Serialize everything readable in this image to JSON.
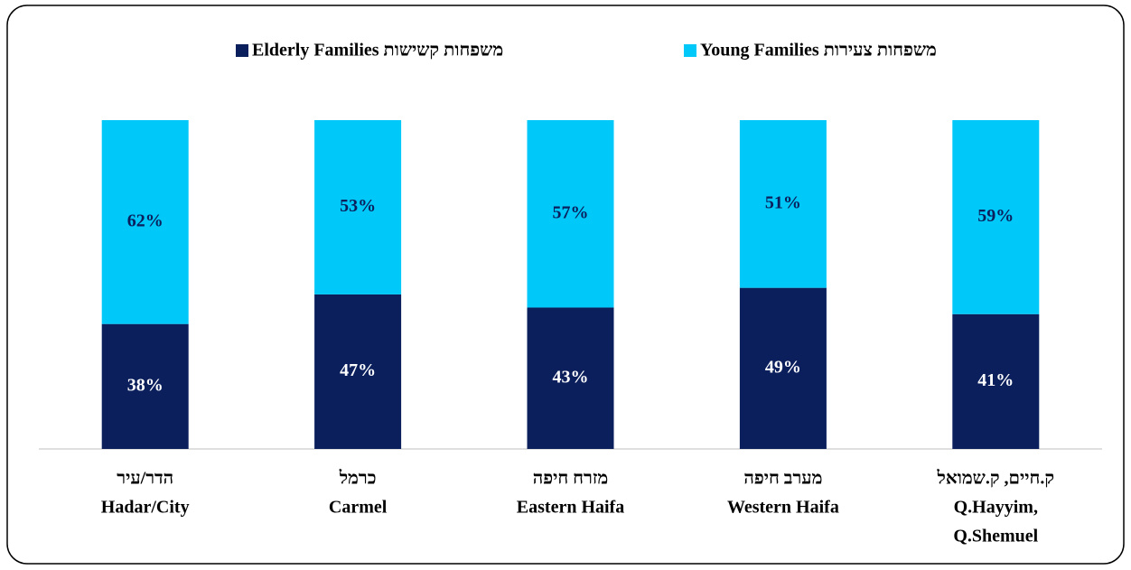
{
  "chart_data": {
    "type": "stacked_bar",
    "categories": [
      [
        "הדר/עיר",
        "Hadar/City"
      ],
      [
        "כרמל",
        "Carmel"
      ],
      [
        "מזרח חיפה",
        "Eastern Haifa"
      ],
      [
        "מערב חיפה",
        "Western Haifa"
      ],
      [
        "ק.חיים, ק.שמואל",
        "Q.Hayyim,",
        "Q.Shemuel"
      ]
    ],
    "series": [
      {
        "name": "Elderly Families משפחות קשישות",
        "color": "#0b1f5c",
        "values": [
          38,
          47,
          43,
          49,
          41
        ],
        "value_labels": [
          "38%",
          "47%",
          "43%",
          "49%",
          "41%"
        ]
      },
      {
        "name": "Young Families משפחות צעירות",
        "color": "#00c8f8",
        "values": [
          62,
          53,
          57,
          51,
          59
        ],
        "value_labels": [
          "62%",
          "53%",
          "57%",
          "51%",
          "59%"
        ]
      }
    ],
    "ylim": [
      0,
      100
    ],
    "grid": false,
    "legend": "top"
  }
}
